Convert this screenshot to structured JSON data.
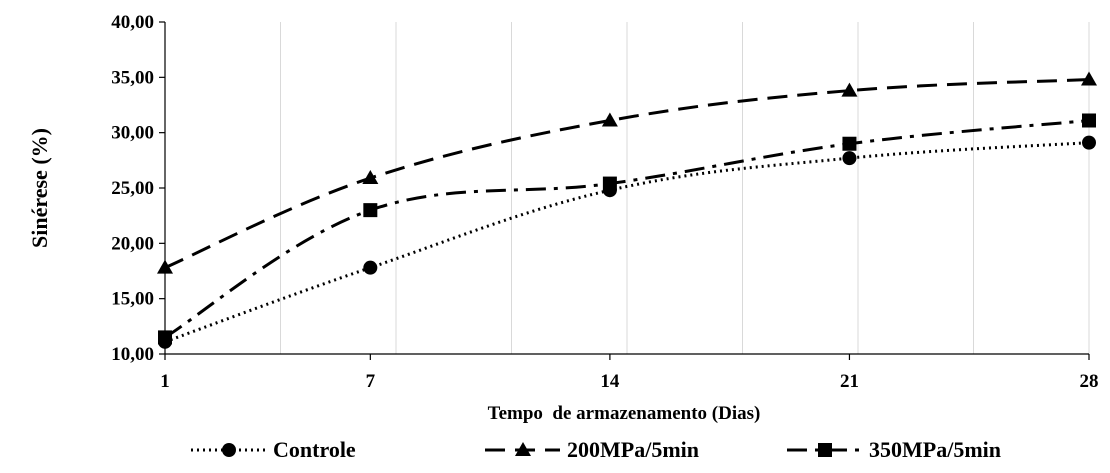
{
  "chart_data": {
    "type": "line",
    "title": "",
    "xlabel": "Tempo  de armazenamento (Dias)",
    "ylabel": "Sinérese (%)",
    "x": [
      1,
      7,
      14,
      21,
      28
    ],
    "x_tick_labels": [
      "1",
      "7",
      "14",
      "21",
      "28"
    ],
    "ylim": [
      10,
      40
    ],
    "y_tick_labels": [
      "10,00",
      "15,00",
      "20,00",
      "25,00",
      "30,00",
      "35,00",
      "40,00"
    ],
    "grid": "vertical",
    "legend_position": "bottom",
    "series": [
      {
        "name": "Controle",
        "values": [
          11.1,
          17.8,
          24.8,
          27.7,
          29.1
        ],
        "style": "dotted",
        "marker": "circle",
        "color": "#000000"
      },
      {
        "name": "200MPa/5min",
        "values": [
          17.8,
          25.9,
          31.1,
          33.8,
          34.8
        ],
        "style": "dashed",
        "marker": "triangle",
        "color": "#000000"
      },
      {
        "name": "350MPa/5min",
        "values": [
          11.5,
          23.0,
          25.4,
          29.0,
          31.1
        ],
        "style": "dashdot",
        "marker": "square",
        "color": "#000000"
      }
    ]
  }
}
